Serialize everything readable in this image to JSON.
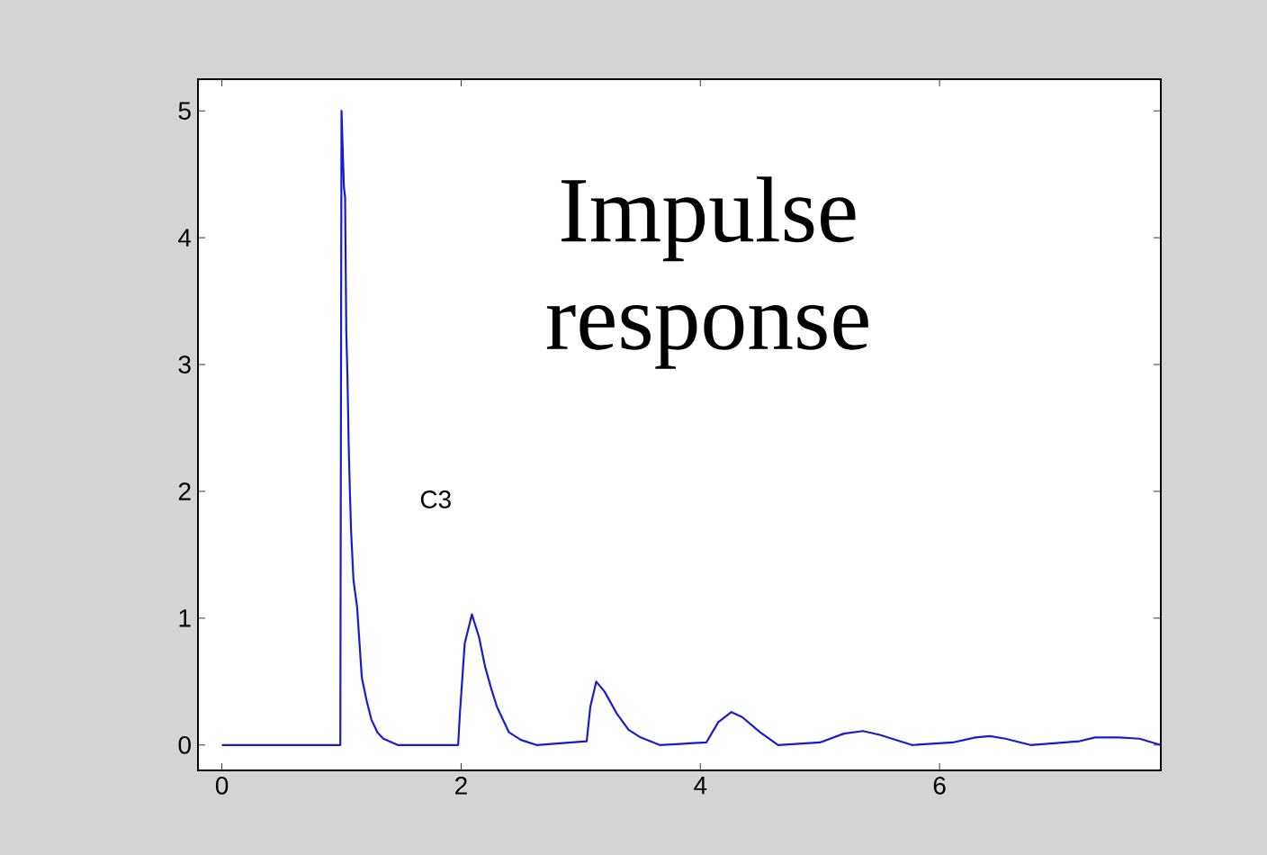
{
  "chart_data": {
    "type": "line",
    "annotations": [
      "Impulse response",
      "C3"
    ],
    "xlim": [
      -0.2,
      7.85
    ],
    "ylim": [
      -0.2,
      5.25
    ],
    "xticks": [
      0,
      2,
      4,
      6
    ],
    "yticks": [
      0,
      1,
      2,
      3,
      4,
      5
    ],
    "series": [
      {
        "color": "#1a1ad0",
        "x": [
          0,
          0.99,
          1.0,
          1.02,
          1.03,
          1.04,
          1.05,
          1.06,
          1.07,
          1.08,
          1.1,
          1.13,
          1.17,
          1.21,
          1.25,
          1.3,
          1.35,
          1.47,
          1.975,
          1.99,
          2.03,
          2.09,
          2.15,
          2.2,
          2.25,
          2.3,
          2.4,
          2.5,
          2.63,
          3.05,
          3.08,
          3.13,
          3.2,
          3.3,
          3.4,
          3.5,
          3.66,
          4.05,
          4.15,
          4.26,
          4.35,
          4.5,
          4.65,
          5.0,
          5.2,
          5.36,
          5.5,
          5.77,
          6.11,
          6.3,
          6.42,
          6.55,
          6.76,
          7.17,
          7.3,
          7.5,
          7.67,
          7.85
        ],
        "values": [
          0,
          0,
          5,
          4.4,
          4.32,
          3.25,
          2.9,
          2.37,
          2.0,
          1.69,
          1.3,
          1.09,
          0.53,
          0.35,
          0.2,
          0.1,
          0.05,
          0,
          0,
          0.25,
          0.8,
          1.03,
          0.85,
          0.62,
          0.45,
          0.3,
          0.1,
          0.04,
          0,
          0.03,
          0.3,
          0.5,
          0.42,
          0.25,
          0.12,
          0.06,
          0,
          0.02,
          0.18,
          0.26,
          0.22,
          0.1,
          0,
          0.02,
          0.09,
          0.11,
          0.08,
          0,
          0.02,
          0.06,
          0.07,
          0.05,
          0,
          0.03,
          0.06,
          0.06,
          0.05,
          0
        ]
      }
    ]
  }
}
